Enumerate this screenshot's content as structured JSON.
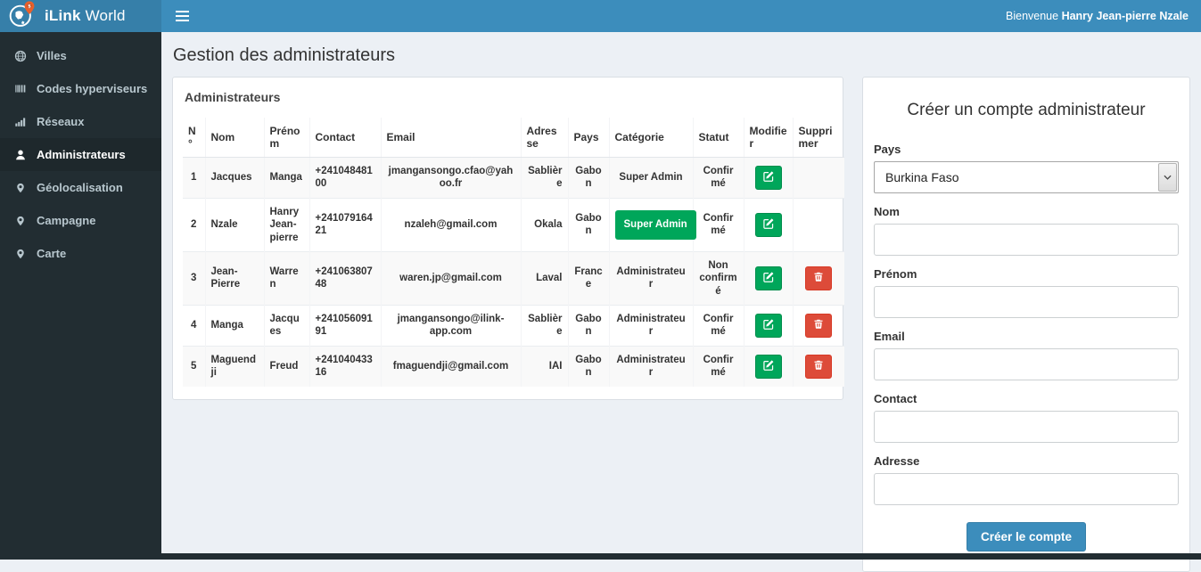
{
  "colors": {
    "navbar": "#3c8dbc",
    "logo_bg": "#367fa9",
    "sidebar_bg": "#222d32",
    "sidebar_active_bg": "#1e282c",
    "content_bg": "#ecf0f5",
    "success_green": "#00a65a",
    "danger_red": "#dd4b39",
    "pin_orange": "#e8612c"
  },
  "header": {
    "brand_bold": "iLink",
    "brand_rest": " World",
    "welcome_prefix": "Bienvenue ",
    "welcome_name": "Hanry Jean-pierre Nzale"
  },
  "sidebar": {
    "items": [
      {
        "id": "villes",
        "label": "Villes",
        "icon": "globe-icon",
        "active": false
      },
      {
        "id": "codes-hyperviseurs",
        "label": "Codes hyperviseurs",
        "icon": "barcode-icon",
        "active": false
      },
      {
        "id": "reseaux",
        "label": "Réseaux",
        "icon": "signal-bars-icon",
        "active": false
      },
      {
        "id": "administrateurs",
        "label": "Administrateurs",
        "icon": "user-icon",
        "active": true
      },
      {
        "id": "geolocalisation",
        "label": "Géolocalisation",
        "icon": "map-marker-icon",
        "active": false
      },
      {
        "id": "campagne",
        "label": "Campagne",
        "icon": "map-marker-icon",
        "active": false
      },
      {
        "id": "carte",
        "label": "Carte",
        "icon": "map-marker-icon",
        "active": false
      }
    ]
  },
  "page": {
    "title": "Gestion des administrateurs"
  },
  "admin_table": {
    "title": "Administrateurs",
    "columns": [
      {
        "key": "num",
        "label": "N°"
      },
      {
        "key": "nom",
        "label": "Nom"
      },
      {
        "key": "prenom",
        "label": "Prénom"
      },
      {
        "key": "contact",
        "label": "Contact"
      },
      {
        "key": "email",
        "label": "Email"
      },
      {
        "key": "adresse",
        "label": "Adresse"
      },
      {
        "key": "pays",
        "label": "Pays"
      },
      {
        "key": "categorie",
        "label": "Catégorie"
      },
      {
        "key": "statut",
        "label": "Statut"
      },
      {
        "key": "modifier",
        "label": "Modifier"
      },
      {
        "key": "supprimer",
        "label": "Supprimer"
      }
    ],
    "rows": [
      {
        "num": "1",
        "nom": "Jacques",
        "prenom": "Manga",
        "contact": "+24104848100",
        "email": "jmangansongo.cfao@yahoo.fr",
        "adresse": "Sablière",
        "pays": "Gabon",
        "categorie": "Super Admin",
        "categorie_style": "text",
        "statut": "Confirmé",
        "can_delete": false
      },
      {
        "num": "2",
        "nom": "Nzale",
        "prenom": "Hanry Jean-pierre",
        "contact": "+24107916421",
        "email": "nzaleh@gmail.com",
        "adresse": "Okala",
        "pays": "Gabon",
        "categorie": "Super Admin",
        "categorie_style": "button",
        "statut": "Confirmé",
        "can_delete": false
      },
      {
        "num": "3",
        "nom": "Jean-Pierre",
        "prenom": "Warren",
        "contact": "+24106380748",
        "email": "waren.jp@gmail.com",
        "adresse": "Laval",
        "pays": "France",
        "categorie": "Administrateur",
        "categorie_style": "text",
        "statut": "Non confirmé",
        "can_delete": true
      },
      {
        "num": "4",
        "nom": "Manga",
        "prenom": "Jacques",
        "contact": "+24105609191",
        "email": "jmangansongo@ilink-app.com",
        "adresse": "Sablière",
        "pays": "Gabon",
        "categorie": "Administrateur",
        "categorie_style": "text",
        "statut": "Confirmé",
        "can_delete": true
      },
      {
        "num": "5",
        "nom": "Maguendji",
        "prenom": "Freud",
        "contact": "+24104043316",
        "email": "fmaguendji@gmail.com",
        "adresse": "IAI",
        "pays": "Gabon",
        "categorie": "Administrateur",
        "categorie_style": "text",
        "statut": "Confirmé",
        "can_delete": true
      }
    ]
  },
  "form": {
    "title": "Créer un compte administrateur",
    "fields": [
      {
        "name": "pays",
        "label": "Pays",
        "type": "select",
        "value": "Burkina Faso"
      },
      {
        "name": "nom",
        "label": "Nom",
        "type": "text",
        "value": ""
      },
      {
        "name": "prenom",
        "label": "Prénom",
        "type": "text",
        "value": ""
      },
      {
        "name": "email",
        "label": "Email",
        "type": "text",
        "value": ""
      },
      {
        "name": "contact",
        "label": "Contact",
        "type": "text",
        "value": ""
      },
      {
        "name": "adresse",
        "label": "Adresse",
        "type": "text",
        "value": ""
      }
    ],
    "submit_label": "Créer le compte"
  }
}
